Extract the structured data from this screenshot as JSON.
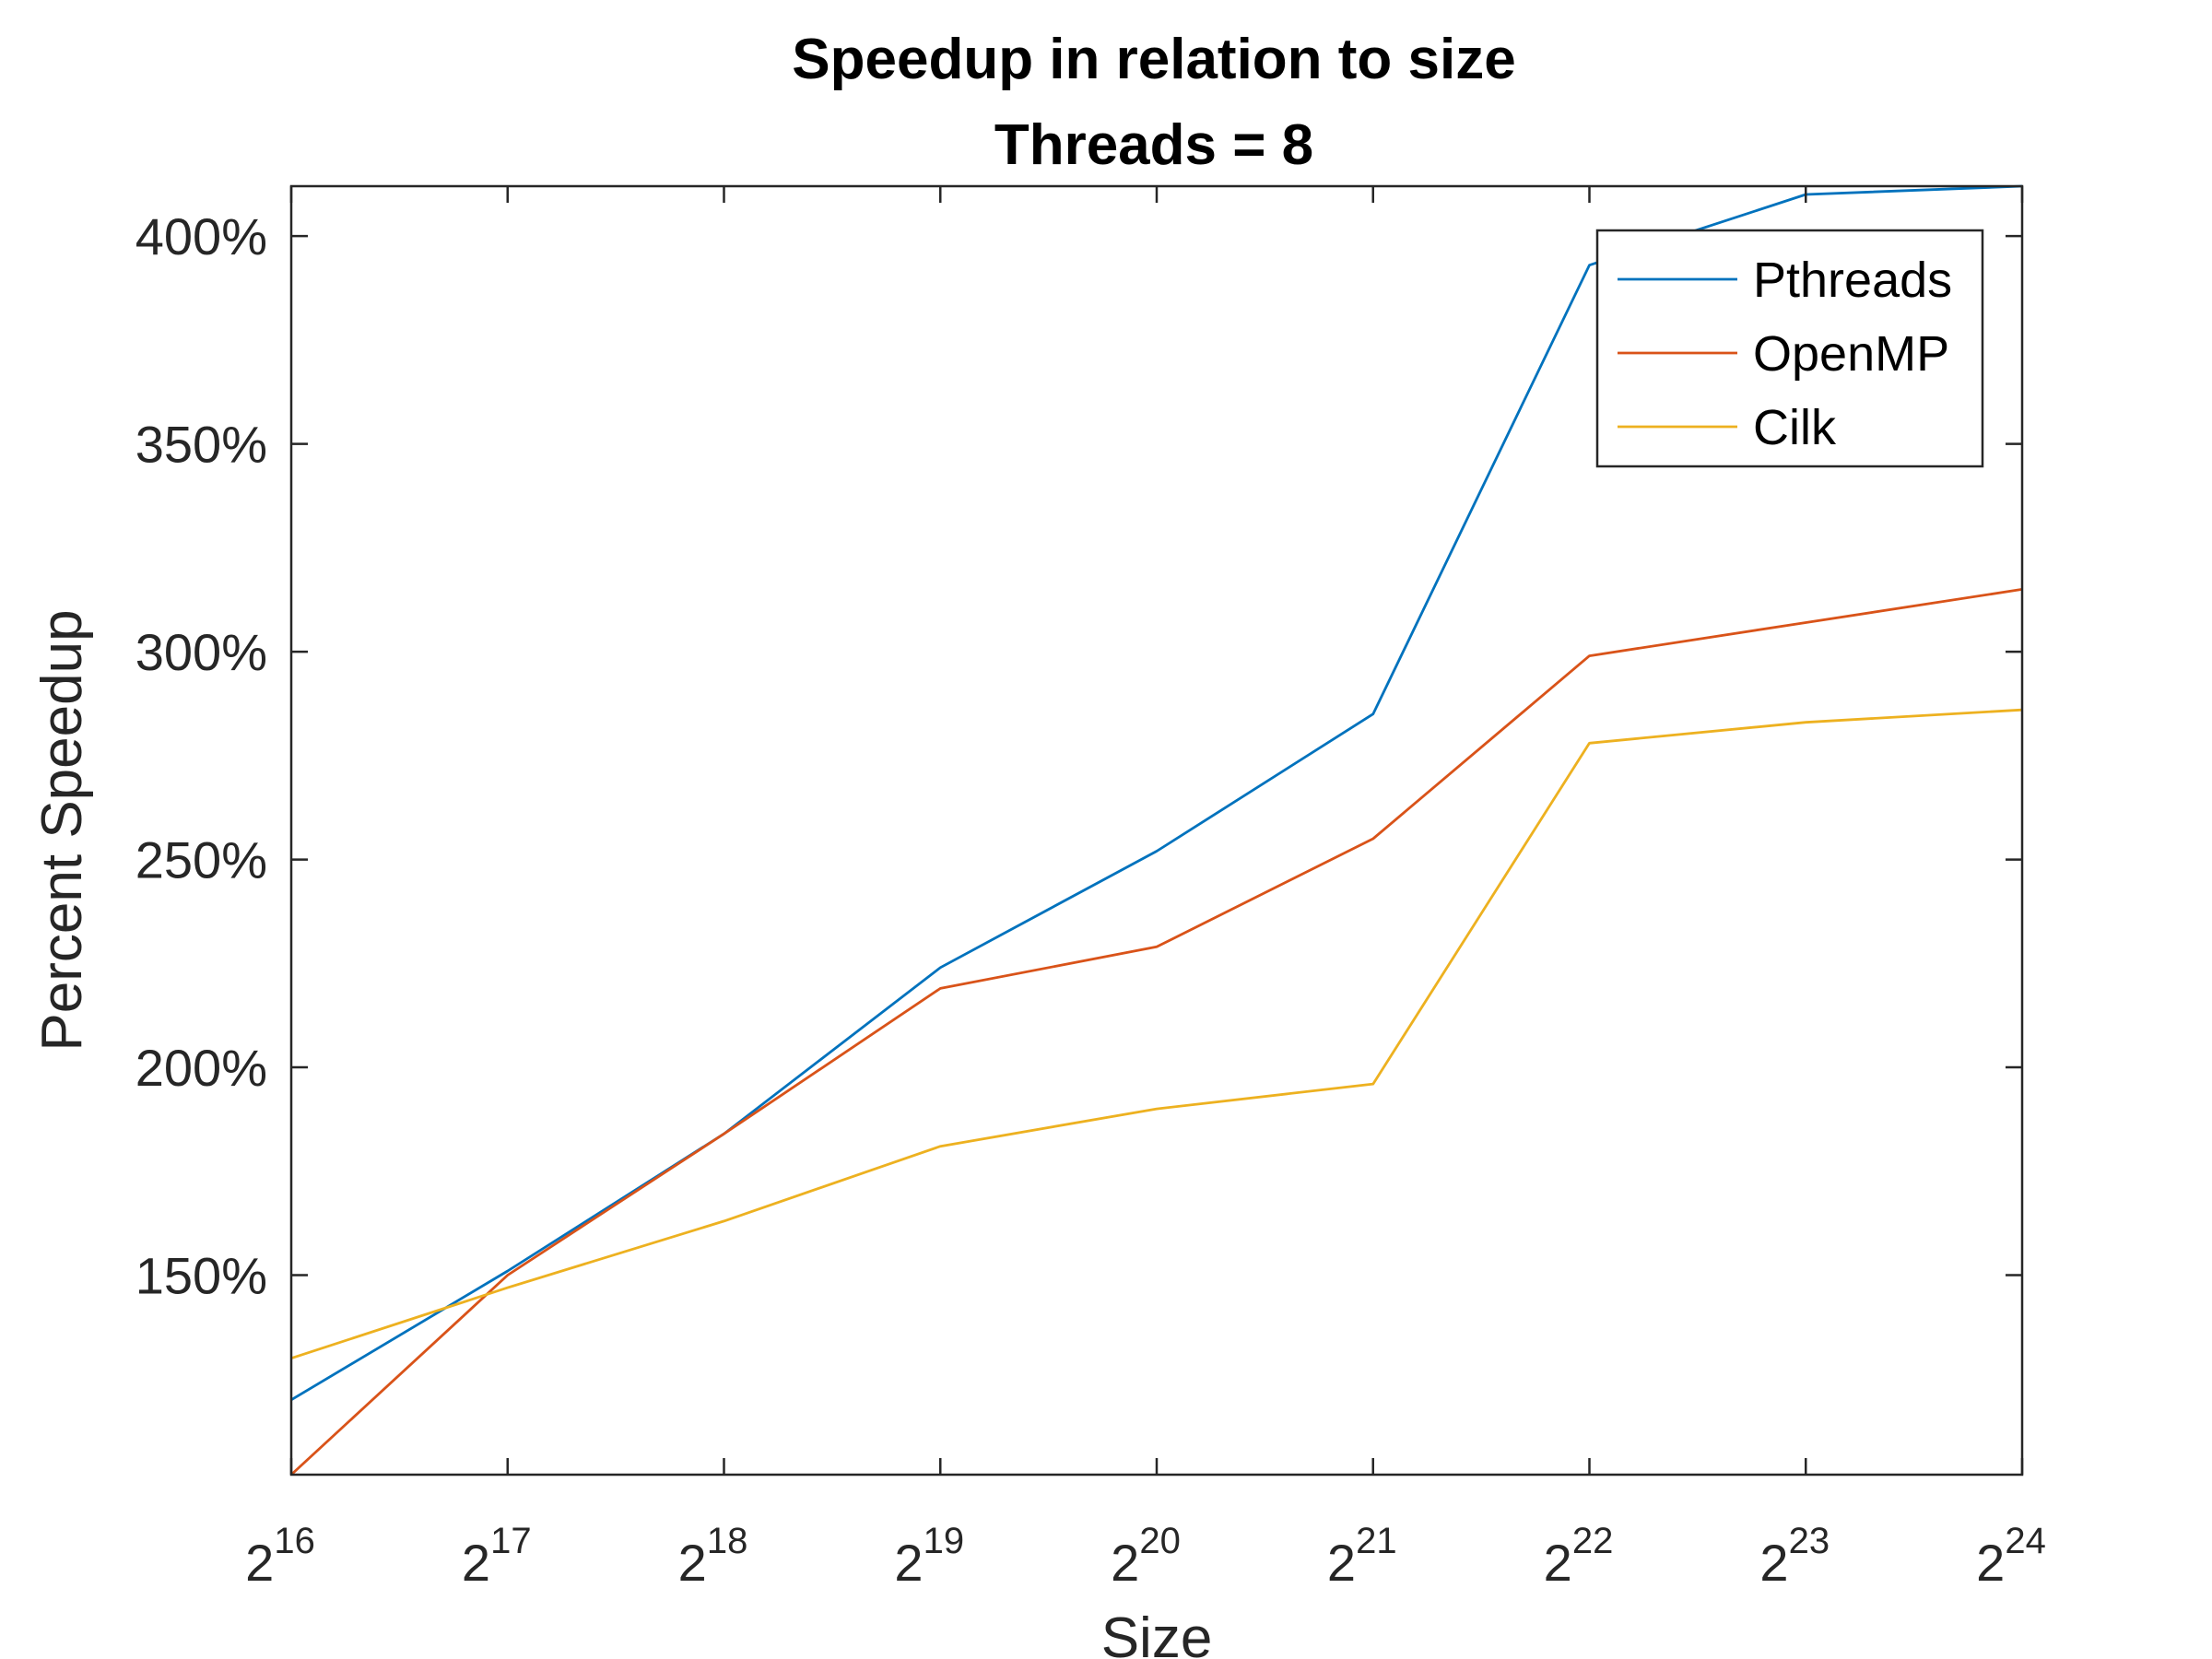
{
  "chart_data": {
    "type": "line",
    "title": "Speedup in relation to size",
    "subtitle": "Threads = 8",
    "xlabel": "Size",
    "ylabel": "Percent Speedup",
    "x": [
      16,
      17,
      18,
      19,
      20,
      21,
      22,
      23,
      24
    ],
    "x_tick_labels": [
      {
        "base": "2",
        "exp": "16"
      },
      {
        "base": "2",
        "exp": "17"
      },
      {
        "base": "2",
        "exp": "18"
      },
      {
        "base": "2",
        "exp": "19"
      },
      {
        "base": "2",
        "exp": "20"
      },
      {
        "base": "2",
        "exp": "21"
      },
      {
        "base": "2",
        "exp": "22"
      },
      {
        "base": "2",
        "exp": "23"
      },
      {
        "base": "2",
        "exp": "24"
      }
    ],
    "y_ticks": [
      150,
      200,
      250,
      300,
      350,
      400
    ],
    "y_tick_labels": [
      "150%",
      "200%",
      "250%",
      "300%",
      "350%",
      "400%"
    ],
    "xlim": [
      16,
      24
    ],
    "ylim": [
      102,
      412
    ],
    "grid": false,
    "legend_position": "top-right",
    "series": [
      {
        "name": "Pthreads",
        "color": "#0072BD",
        "values": [
          120,
          151,
          184,
          224,
          252,
          285,
          393,
          410,
          412
        ]
      },
      {
        "name": "OpenMP",
        "color": "#D95319",
        "values": [
          102,
          150,
          184,
          219,
          229,
          255,
          299,
          307,
          315
        ]
      },
      {
        "name": "Cilk",
        "color": "#EDB120",
        "values": [
          130,
          147,
          163,
          181,
          190,
          196,
          278,
          283,
          286
        ]
      }
    ]
  }
}
